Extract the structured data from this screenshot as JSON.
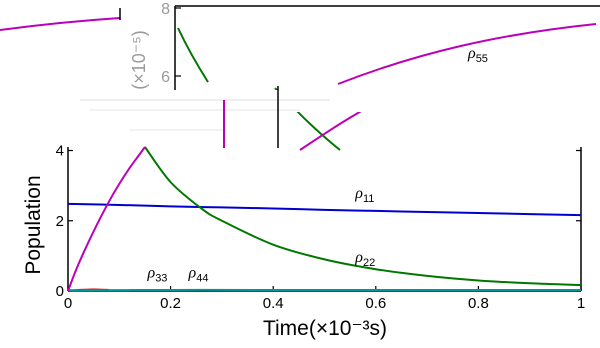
{
  "chart_data": [
    {
      "type": "line",
      "xlabel": "Time(×10⁻³s)",
      "ylabel": "Population",
      "xlim": [
        0,
        1
      ],
      "ylim": [
        0,
        4.1
      ],
      "x_ticks": [
        "0",
        "0.2",
        "0.4",
        "0.6",
        "0.8",
        "1"
      ],
      "y_ticks": [
        "0",
        "2",
        "4"
      ],
      "grid": false,
      "series": [
        {
          "name": "ρ11",
          "label_symbol": "ρ",
          "label_sub": "11",
          "color": "#0000cc",
          "x": [
            0,
            0.1,
            0.2,
            0.3,
            0.4,
            0.5,
            0.6,
            0.7,
            0.8,
            0.9,
            1.0
          ],
          "y": [
            2.48,
            2.45,
            2.41,
            2.38,
            2.35,
            2.31,
            2.28,
            2.25,
            2.22,
            2.19,
            2.16
          ]
        },
        {
          "name": "ρ22",
          "label_symbol": "ρ",
          "label_sub": "22",
          "color": "#007700",
          "x": [
            0.15,
            0.2,
            0.26,
            0.3,
            0.4,
            0.5,
            0.6,
            0.7,
            0.8,
            0.9,
            1.0
          ],
          "y": [
            4.1,
            3.1,
            2.35,
            2.0,
            1.32,
            0.9,
            0.62,
            0.43,
            0.3,
            0.22,
            0.17
          ]
        },
        {
          "name": "ρ33",
          "label_symbol": "ρ",
          "label_sub": "33",
          "color": "#cc0000",
          "x": [
            0,
            0.02,
            0.04,
            0.06,
            0.08
          ],
          "y": [
            0,
            0.03,
            0.04,
            0.04,
            0.03
          ]
        },
        {
          "name": "ρ44",
          "label_symbol": "ρ",
          "label_sub": "44",
          "color": "#009999",
          "x": [
            0,
            0.2,
            0.4,
            0.6,
            0.8,
            1.0
          ],
          "y": [
            0.02,
            0.03,
            0.03,
            0.03,
            0.03,
            0.03
          ]
        },
        {
          "name": "ρ55",
          "label_symbol": "ρ",
          "label_sub": "55",
          "color": "#bb00bb",
          "x": [
            0,
            0.02,
            0.05,
            0.08,
            0.1,
            0.12,
            0.14,
            0.15
          ],
          "y": [
            0,
            0.75,
            1.7,
            2.55,
            3.05,
            3.5,
            3.9,
            4.1
          ]
        }
      ]
    },
    {
      "type": "line",
      "ylabel": "(×10⁻⁵)",
      "y_ticks": [
        "6",
        "8"
      ],
      "series": [
        {
          "name": "ρ55",
          "label_symbol": "ρ",
          "label_sub": "55",
          "color": "#bb00bb"
        }
      ]
    }
  ]
}
